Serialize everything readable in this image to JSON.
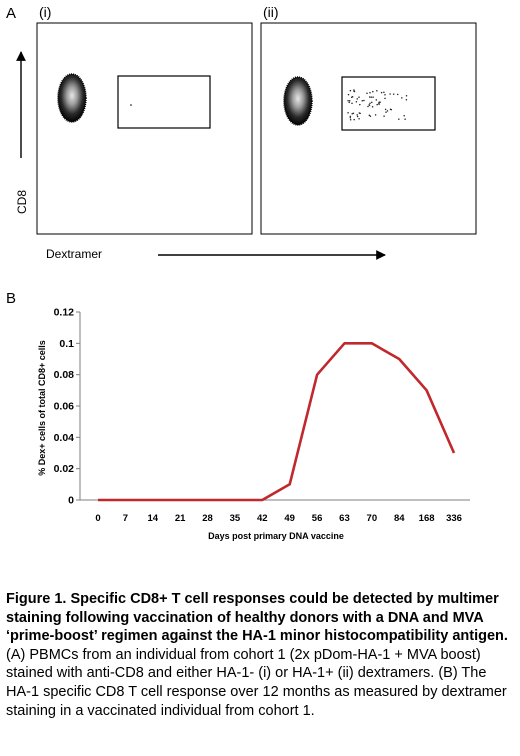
{
  "panel_a": {
    "label": "A",
    "subpanels": [
      {
        "label": "(i)",
        "gate_event_count": "few"
      },
      {
        "label": "(ii)",
        "gate_event_count": "many"
      }
    ],
    "y_axis_label": "CD8",
    "x_axis_label": "Dextramer"
  },
  "chart_data": {
    "type": "line",
    "panel_label": "B",
    "title": "",
    "xlabel": "Days post primary DNA vaccine",
    "ylabel": "% Dex+ cells of total CD8+ cells",
    "categories": [
      "0",
      "7",
      "14",
      "21",
      "28",
      "35",
      "42",
      "49",
      "56",
      "63",
      "70",
      "84",
      "168",
      "336"
    ],
    "series": [
      {
        "name": "",
        "values": [
          0,
          0,
          0,
          0,
          0,
          0,
          0,
          0.01,
          0.08,
          0.1,
          0.1,
          0.09,
          0.07,
          0.03
        ],
        "color": "#C0282D"
      }
    ],
    "ylim": [
      0,
      0.12
    ],
    "yticks": [
      "0",
      "0.02",
      "0.04",
      "0.06",
      "0.08",
      "0.1",
      "0.12"
    ],
    "grid": false,
    "legend": "none"
  },
  "caption": {
    "bold_text": "Figure 1.  Specific CD8+ T cell responses could be detected by multimer staining following vaccination of healthy donors with a DNA and MVA ‘prime-boost’ regimen against the HA-1 minor histocompatibility antigen.",
    "text": " (A) PBMCs from an individual from cohort 1 (2x pDom-HA-1 + MVA boost) stained with anti-CD8 and either HA-1- (i) or HA-1+ (ii) dextramers. (B) The HA-1 specific CD8 T cell response over 12 months as measured by dextramer staining in a vaccinated individual from cohort 1."
  }
}
